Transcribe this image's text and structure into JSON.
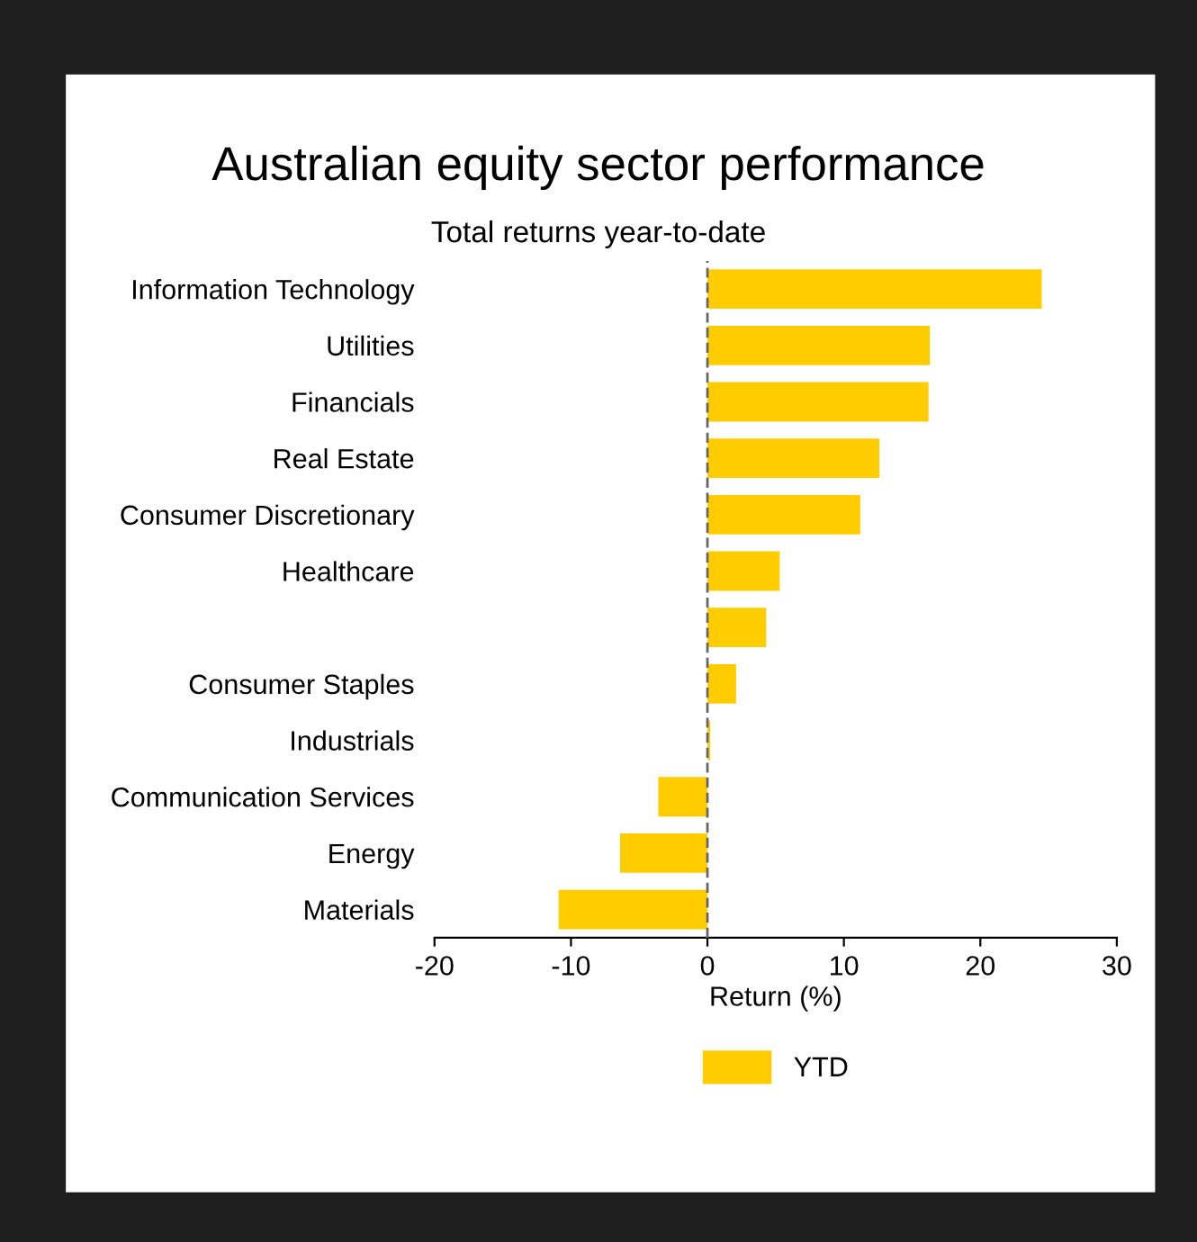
{
  "chart_data": {
    "type": "bar",
    "orientation": "horizontal",
    "title": "Australian equity sector performance",
    "subtitle": "Total returns year-to-date",
    "xlabel": "Return (%)",
    "categories": [
      "Information Technology",
      "Utilities",
      "Financials",
      "Real Estate",
      "Consumer Discretionary",
      "Healthcare",
      null,
      "Consumer Staples",
      "Industrials",
      "Communication Services",
      "Energy",
      "Materials"
    ],
    "series": [
      {
        "name": "YTD",
        "color": "#ffcc00",
        "values": [
          24.5,
          16.3,
          16.2,
          12.6,
          11.2,
          5.3,
          4.3,
          2.1,
          0.2,
          -3.6,
          -6.4,
          -10.9
        ]
      }
    ],
    "xlim": [
      -20,
      30
    ],
    "xticks": [
      -20,
      -10,
      0,
      10,
      20,
      30
    ],
    "ref_lines": [
      {
        "axis": "x",
        "value": 0,
        "color": "#666666",
        "line_style": "dashed"
      }
    ],
    "grid": false,
    "legend": "bottom"
  }
}
